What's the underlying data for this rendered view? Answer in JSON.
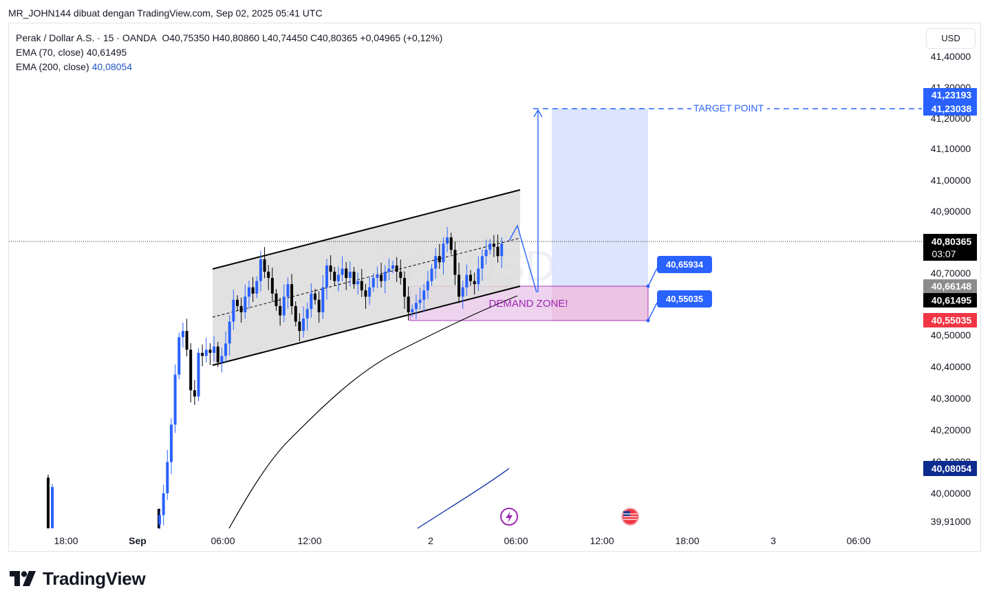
{
  "snapshot_header": "MR_JOHN144 dibuat dengan TradingView.com, Sep 02, 2025 05:41 UTC",
  "legend": {
    "title": "Perak / Dollar A.S. · 15 · OANDA",
    "ohlc": "O40,75350  H40,80860  L40,74450  C40,80365  +0,04965 (+0,12%)",
    "ema70_label": "EMA (70, close)",
    "ema70_value": "40,61495",
    "ema200_label": "EMA (200, close)",
    "ema200_value": "40,08054"
  },
  "currency": "USD",
  "watermark": "XAGUSD",
  "footer_brand": "TradingView",
  "icons": {
    "lightning": "lightning-event-icon",
    "flag": "us-flag-event-icon",
    "logo": "tradingview-logo-icon"
  },
  "colors": {
    "up": "#2962ff",
    "down": "#000000",
    "target": "#2962ff",
    "channel_fill": "#dcdcdc",
    "demand_fill": "#e9c5ea",
    "demand_border": "#9c27b0",
    "position_fill": "#d6e0fb",
    "red_label": "#f23645",
    "navy_label": "#0d2b8e"
  },
  "chart_data": {
    "type": "candlestick",
    "y_ticks": [
      "41,40000",
      "41,30000",
      "41,20000",
      "41,10000",
      "41,00000",
      "40,90000",
      "40,80000",
      "40,70000",
      "40,60000",
      "40,50000",
      "40,40000",
      "40,30000",
      "40,20000",
      "40,10000",
      "40,00000",
      "39,91000"
    ],
    "x_ticks": [
      "18:00",
      "Sep",
      "06:00",
      "12:00",
      "2",
      "06:00",
      "12:00",
      "18:00",
      "3",
      "06:00"
    ],
    "last_price": "40,80365",
    "countdown": "03:07",
    "price_labels": {
      "target_1": "41,23193",
      "target_2": "41,23038",
      "zone_top": "40,66148",
      "ema70": "40,61495",
      "zone_bottom": "40,55035",
      "ema200": "40,08054"
    },
    "callouts": {
      "upper": "40,65934",
      "lower": "40,55035"
    },
    "annotations": {
      "target": "TARGET POINT",
      "demand": "DEMAND ZONE!"
    },
    "target_price": 41.2304,
    "demand_zone": [
      40.5504,
      40.6615
    ],
    "channel_upper": [
      [
        40.72,
        40.97
      ]
    ],
    "channel_lower": [
      [
        40.41,
        40.66
      ]
    ],
    "candles_close": [
      39.93,
      40.0,
      40.1,
      40.22,
      40.38,
      40.5,
      40.52,
      40.46,
      40.33,
      40.31,
      40.45,
      40.44,
      40.46,
      40.45,
      40.47,
      40.42,
      40.44,
      40.48,
      40.55,
      40.62,
      40.6,
      40.58,
      40.63,
      40.66,
      40.64,
      40.68,
      40.75,
      40.71,
      40.69,
      40.64,
      40.6,
      40.57,
      40.63,
      40.67,
      40.6,
      40.55,
      40.52,
      40.56,
      40.59,
      40.64,
      40.62,
      40.58,
      40.66,
      40.73,
      40.71,
      40.68,
      40.7,
      40.72,
      40.69,
      40.71,
      40.67,
      40.68,
      40.65,
      40.63,
      40.66,
      40.69,
      40.7,
      40.68,
      40.71,
      40.72,
      40.73,
      40.71,
      40.69,
      40.63,
      40.58,
      40.59,
      40.61,
      40.62,
      40.65,
      40.68,
      40.72,
      40.76,
      40.74,
      40.8,
      40.82,
      40.78,
      40.7,
      40.63,
      40.66,
      40.7,
      40.68,
      40.67,
      40.72,
      40.76,
      40.78,
      40.8,
      40.79,
      40.76,
      40.8
    ]
  }
}
